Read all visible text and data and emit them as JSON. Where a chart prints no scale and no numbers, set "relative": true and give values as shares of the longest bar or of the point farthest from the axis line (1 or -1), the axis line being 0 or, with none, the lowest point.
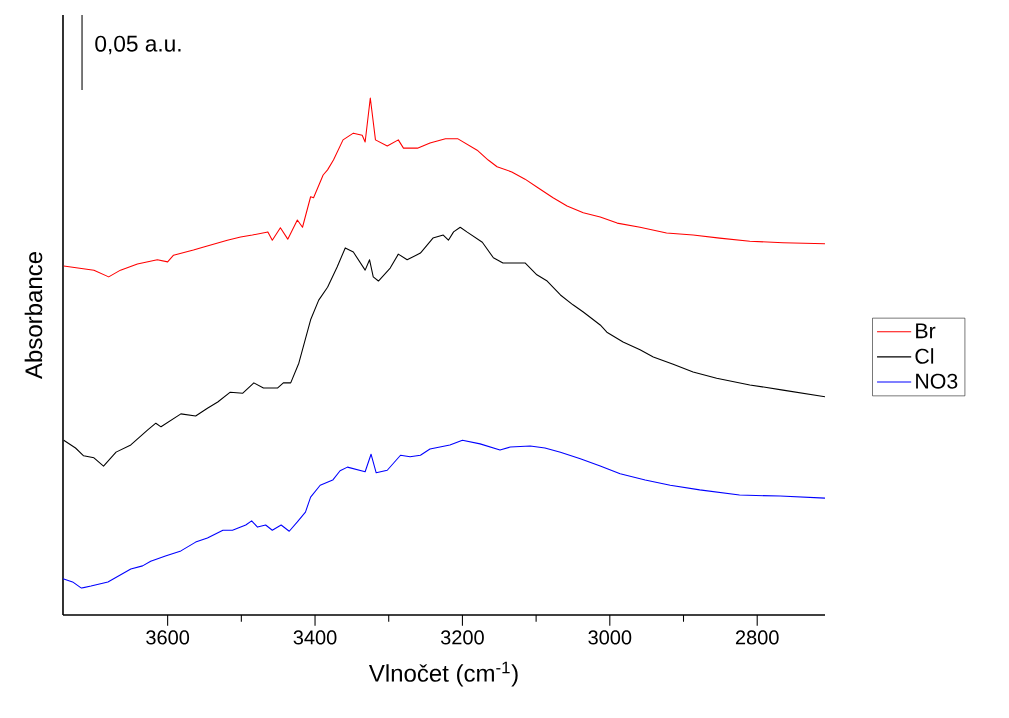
{
  "chart_data": {
    "type": "line",
    "relative": true,
    "xlabel": "Vlnočet (cm$^{-1}$)",
    "ylabel": "Absorbance",
    "annotations": [
      "0,05 a.u."
    ],
    "xlim": [
      3742,
      2708
    ],
    "xticks": [
      3600,
      3400,
      3200,
      3000,
      2800
    ],
    "legend": "right",
    "grid": false,
    "series": [
      {
        "name": "Br",
        "color": "#ff0000",
        "x": [
          3741,
          3700,
          3680,
          3664,
          3641,
          3614,
          3600,
          3592,
          3565,
          3551,
          3519,
          3501,
          3485,
          3464,
          3458,
          3447,
          3437,
          3424,
          3417,
          3406,
          3402,
          3389,
          3383,
          3375,
          3362,
          3348,
          3336,
          3332,
          3325,
          3318,
          3302,
          3287,
          3280,
          3261,
          3244,
          3223,
          3206,
          3180,
          3165,
          3153,
          3133,
          3115,
          3097,
          3077,
          3058,
          3036,
          3013,
          2990,
          2959,
          2923,
          2887,
          2851,
          2810,
          2765,
          2708
        ],
        "values": [
          0.675,
          0.667,
          0.654,
          0.667,
          0.679,
          0.687,
          0.683,
          0.696,
          0.706,
          0.712,
          0.725,
          0.731,
          0.735,
          0.741,
          0.725,
          0.749,
          0.727,
          0.764,
          0.75,
          0.809,
          0.807,
          0.851,
          0.861,
          0.88,
          0.919,
          0.932,
          0.928,
          0.915,
          1,
          0.919,
          0.907,
          0.919,
          0.903,
          0.903,
          0.913,
          0.921,
          0.921,
          0.899,
          0.88,
          0.867,
          0.857,
          0.843,
          0.826,
          0.807,
          0.791,
          0.778,
          0.77,
          0.758,
          0.75,
          0.739,
          0.735,
          0.729,
          0.723,
          0.72,
          0.718
        ]
      },
      {
        "name": "Cl",
        "color": "#000000",
        "x": [
          3741,
          3725,
          3714,
          3700,
          3687,
          3670,
          3650,
          3627,
          3616,
          3609,
          3582,
          3562,
          3546,
          3532,
          3515,
          3498,
          3483,
          3470,
          3451,
          3443,
          3433,
          3422,
          3406,
          3395,
          3383,
          3370,
          3359,
          3348,
          3332,
          3326,
          3321,
          3314,
          3298,
          3287,
          3275,
          3257,
          3240,
          3226,
          3219,
          3212,
          3203,
          3194,
          3173,
          3158,
          3145,
          3128,
          3115,
          3099,
          3085,
          3067,
          3050,
          3036,
          3013,
          3004,
          2982,
          2959,
          2941,
          2914,
          2887,
          2855,
          2810,
          2765,
          2708
        ],
        "values": [
          0.338,
          0.323,
          0.308,
          0.304,
          0.288,
          0.315,
          0.329,
          0.358,
          0.371,
          0.364,
          0.389,
          0.385,
          0.4,
          0.412,
          0.431,
          0.429,
          0.449,
          0.439,
          0.439,
          0.449,
          0.449,
          0.487,
          0.571,
          0.609,
          0.634,
          0.673,
          0.71,
          0.702,
          0.667,
          0.687,
          0.654,
          0.646,
          0.671,
          0.698,
          0.687,
          0.7,
          0.729,
          0.735,
          0.725,
          0.741,
          0.75,
          0.741,
          0.721,
          0.691,
          0.681,
          0.681,
          0.681,
          0.658,
          0.646,
          0.619,
          0.6,
          0.586,
          0.561,
          0.547,
          0.528,
          0.513,
          0.499,
          0.485,
          0.47,
          0.458,
          0.445,
          0.435,
          0.422
        ]
      },
      {
        "name": "NO3",
        "color": "#0000ff",
        "x": [
          3742,
          3729,
          3717,
          3704,
          3681,
          3650,
          3634,
          3623,
          3603,
          3582,
          3562,
          3546,
          3525,
          3512,
          3494,
          3486,
          3478,
          3467,
          3458,
          3446,
          3435,
          3424,
          3413,
          3406,
          3393,
          3376,
          3366,
          3356,
          3332,
          3324,
          3317,
          3302,
          3284,
          3271,
          3257,
          3244,
          3217,
          3200,
          3176,
          3149,
          3135,
          3108,
          3088,
          3067,
          3040,
          3013,
          2986,
          2952,
          2918,
          2878,
          2824,
          2769,
          2708
        ],
        "values": [
          0.07,
          0.064,
          0.052,
          0.056,
          0.064,
          0.089,
          0.095,
          0.104,
          0.114,
          0.124,
          0.141,
          0.149,
          0.164,
          0.164,
          0.174,
          0.182,
          0.17,
          0.174,
          0.164,
          0.174,
          0.162,
          0.18,
          0.199,
          0.228,
          0.251,
          0.261,
          0.279,
          0.286,
          0.277,
          0.311,
          0.275,
          0.28,
          0.309,
          0.306,
          0.309,
          0.321,
          0.329,
          0.338,
          0.331,
          0.319,
          0.325,
          0.327,
          0.323,
          0.315,
          0.302,
          0.288,
          0.273,
          0.261,
          0.251,
          0.242,
          0.232,
          0.23,
          0.226
        ]
      }
    ]
  }
}
